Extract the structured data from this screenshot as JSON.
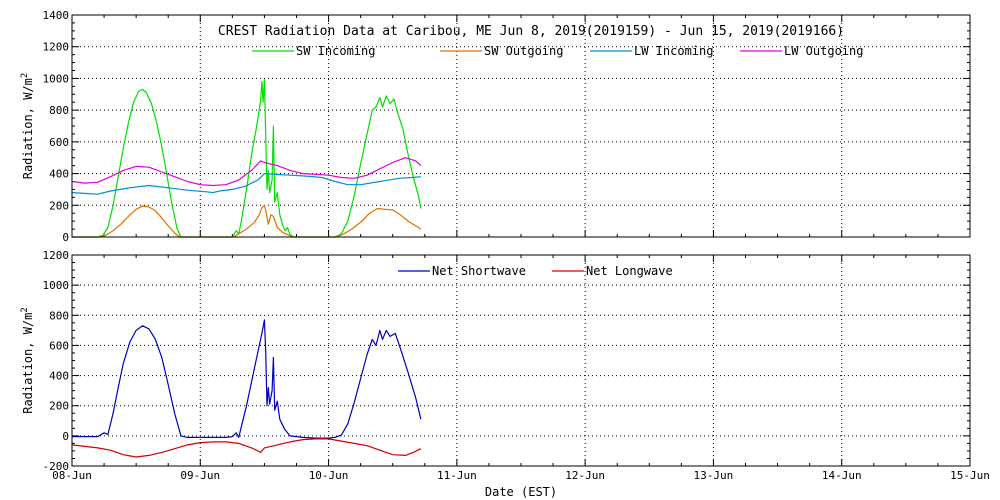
{
  "chart_data": [
    {
      "type": "line",
      "title": "CREST Radiation Data at Caribou, ME   Jun  8, 2019(2019159) - Jun 15, 2019(2019166)",
      "xlabel": "",
      "ylabel": "Radiation, W/m^2",
      "xlim": [
        0,
        7
      ],
      "ylim": [
        0,
        1400
      ],
      "yticks": [
        0,
        200,
        400,
        600,
        800,
        1000,
        1200,
        1400
      ],
      "x_tick_labels": [
        "08-Jun",
        "09-Jun",
        "10-Jun",
        "11-Jun",
        "12-Jun",
        "13-Jun",
        "14-Jun",
        "15-Jun"
      ],
      "grid": true,
      "legend_position": "top",
      "series": [
        {
          "name": "SW Incoming",
          "color": "#00e000",
          "points": [
            [
              0.0,
              0
            ],
            [
              0.2,
              0
            ],
            [
              0.24,
              10
            ],
            [
              0.28,
              60
            ],
            [
              0.32,
              200
            ],
            [
              0.36,
              380
            ],
            [
              0.4,
              560
            ],
            [
              0.44,
              720
            ],
            [
              0.48,
              850
            ],
            [
              0.52,
              920
            ],
            [
              0.55,
              930
            ],
            [
              0.58,
              910
            ],
            [
              0.62,
              840
            ],
            [
              0.66,
              720
            ],
            [
              0.7,
              570
            ],
            [
              0.74,
              390
            ],
            [
              0.78,
              200
            ],
            [
              0.82,
              50
            ],
            [
              0.85,
              0
            ],
            [
              1.25,
              0
            ],
            [
              1.28,
              40
            ],
            [
              1.3,
              20
            ],
            [
              1.32,
              100
            ],
            [
              1.36,
              300
            ],
            [
              1.4,
              520
            ],
            [
              1.44,
              700
            ],
            [
              1.47,
              860
            ],
            [
              1.48,
              980
            ],
            [
              1.49,
              850
            ],
            [
              1.5,
              995
            ],
            [
              1.51,
              640
            ],
            [
              1.52,
              300
            ],
            [
              1.53,
              420
            ],
            [
              1.54,
              280
            ],
            [
              1.56,
              360
            ],
            [
              1.57,
              700
            ],
            [
              1.58,
              220
            ],
            [
              1.6,
              280
            ],
            [
              1.62,
              140
            ],
            [
              1.64,
              80
            ],
            [
              1.66,
              40
            ],
            [
              1.68,
              60
            ],
            [
              1.7,
              15
            ],
            [
              1.73,
              0
            ],
            [
              2.05,
              0
            ],
            [
              2.1,
              20
            ],
            [
              2.15,
              100
            ],
            [
              2.2,
              260
            ],
            [
              2.25,
              460
            ],
            [
              2.3,
              650
            ],
            [
              2.34,
              800
            ],
            [
              2.37,
              820
            ],
            [
              2.4,
              880
            ],
            [
              2.42,
              820
            ],
            [
              2.45,
              890
            ],
            [
              2.48,
              840
            ],
            [
              2.51,
              870
            ],
            [
              2.54,
              780
            ],
            [
              2.58,
              680
            ],
            [
              2.62,
              520
            ],
            [
              2.66,
              380
            ],
            [
              2.7,
              260
            ],
            [
              2.72,
              180
            ]
          ]
        },
        {
          "name": "SW Outgoing",
          "color": "#e07000",
          "points": [
            [
              0.0,
              0
            ],
            [
              0.22,
              0
            ],
            [
              0.26,
              10
            ],
            [
              0.32,
              40
            ],
            [
              0.38,
              80
            ],
            [
              0.44,
              130
            ],
            [
              0.5,
              175
            ],
            [
              0.55,
              195
            ],
            [
              0.6,
              190
            ],
            [
              0.65,
              165
            ],
            [
              0.7,
              120
            ],
            [
              0.75,
              70
            ],
            [
              0.8,
              25
            ],
            [
              0.84,
              0
            ],
            [
              1.26,
              0
            ],
            [
              1.3,
              20
            ],
            [
              1.36,
              50
            ],
            [
              1.42,
              90
            ],
            [
              1.46,
              140
            ],
            [
              1.48,
              185
            ],
            [
              1.5,
              200
            ],
            [
              1.51,
              170
            ],
            [
              1.53,
              80
            ],
            [
              1.55,
              140
            ],
            [
              1.57,
              130
            ],
            [
              1.6,
              60
            ],
            [
              1.64,
              30
            ],
            [
              1.68,
              15
            ],
            [
              1.72,
              0
            ],
            [
              2.06,
              0
            ],
            [
              2.12,
              20
            ],
            [
              2.18,
              50
            ],
            [
              2.26,
              100
            ],
            [
              2.32,
              150
            ],
            [
              2.38,
              180
            ],
            [
              2.44,
              175
            ],
            [
              2.5,
              170
            ],
            [
              2.56,
              140
            ],
            [
              2.62,
              100
            ],
            [
              2.68,
              70
            ],
            [
              2.72,
              50
            ]
          ]
        },
        {
          "name": "LW Incoming",
          "color": "#0090d0",
          "points": [
            [
              0.0,
              280
            ],
            [
              0.1,
              275
            ],
            [
              0.2,
              270
            ],
            [
              0.3,
              290
            ],
            [
              0.45,
              310
            ],
            [
              0.6,
              325
            ],
            [
              0.75,
              310
            ],
            [
              0.9,
              295
            ],
            [
              1.05,
              285
            ],
            [
              1.1,
              280
            ],
            [
              1.15,
              290
            ],
            [
              1.25,
              300
            ],
            [
              1.35,
              320
            ],
            [
              1.45,
              360
            ],
            [
              1.5,
              400
            ],
            [
              1.6,
              395
            ],
            [
              1.7,
              390
            ],
            [
              1.8,
              385
            ],
            [
              1.95,
              375
            ],
            [
              2.05,
              350
            ],
            [
              2.15,
              330
            ],
            [
              2.25,
              330
            ],
            [
              2.4,
              350
            ],
            [
              2.55,
              370
            ],
            [
              2.65,
              375
            ],
            [
              2.72,
              380
            ]
          ]
        },
        {
          "name": "LW Outgoing",
          "color": "#e000e0",
          "points": [
            [
              0.0,
              350
            ],
            [
              0.1,
              340
            ],
            [
              0.2,
              345
            ],
            [
              0.3,
              380
            ],
            [
              0.4,
              420
            ],
            [
              0.5,
              445
            ],
            [
              0.6,
              440
            ],
            [
              0.7,
              410
            ],
            [
              0.8,
              380
            ],
            [
              0.9,
              350
            ],
            [
              1.0,
              330
            ],
            [
              1.1,
              325
            ],
            [
              1.2,
              330
            ],
            [
              1.3,
              360
            ],
            [
              1.4,
              420
            ],
            [
              1.47,
              480
            ],
            [
              1.5,
              470
            ],
            [
              1.6,
              450
            ],
            [
              1.7,
              420
            ],
            [
              1.8,
              400
            ],
            [
              1.9,
              395
            ],
            [
              2.0,
              390
            ],
            [
              2.1,
              375
            ],
            [
              2.2,
              370
            ],
            [
              2.3,
              390
            ],
            [
              2.4,
              430
            ],
            [
              2.5,
              470
            ],
            [
              2.6,
              500
            ],
            [
              2.68,
              480
            ],
            [
              2.72,
              450
            ]
          ]
        }
      ]
    },
    {
      "type": "line",
      "title": "",
      "xlabel": "Date (EST)",
      "ylabel": "Radiation, W/m^2",
      "xlim": [
        0,
        7
      ],
      "ylim": [
        -200,
        1200
      ],
      "yticks": [
        -200,
        0,
        200,
        400,
        600,
        800,
        1000,
        1200
      ],
      "x_tick_labels": [
        "08-Jun",
        "09-Jun",
        "10-Jun",
        "11-Jun",
        "12-Jun",
        "13-Jun",
        "14-Jun",
        "15-Jun"
      ],
      "grid": true,
      "legend_position": "top",
      "series": [
        {
          "name": "Net Shortwave",
          "color": "#0000c0",
          "points": [
            [
              0.0,
              -5
            ],
            [
              0.1,
              -5
            ],
            [
              0.2,
              -5
            ],
            [
              0.25,
              20
            ],
            [
              0.28,
              10
            ],
            [
              0.32,
              150
            ],
            [
              0.36,
              320
            ],
            [
              0.4,
              480
            ],
            [
              0.45,
              620
            ],
            [
              0.5,
              700
            ],
            [
              0.55,
              730
            ],
            [
              0.6,
              710
            ],
            [
              0.65,
              640
            ],
            [
              0.7,
              520
            ],
            [
              0.75,
              340
            ],
            [
              0.8,
              150
            ],
            [
              0.85,
              0
            ],
            [
              0.9,
              -10
            ],
            [
              1.0,
              -10
            ],
            [
              1.1,
              -10
            ],
            [
              1.2,
              -10
            ],
            [
              1.25,
              -5
            ],
            [
              1.28,
              20
            ],
            [
              1.3,
              -10
            ],
            [
              1.32,
              60
            ],
            [
              1.36,
              200
            ],
            [
              1.4,
              360
            ],
            [
              1.44,
              520
            ],
            [
              1.47,
              640
            ],
            [
              1.49,
              720
            ],
            [
              1.5,
              770
            ],
            [
              1.51,
              560
            ],
            [
              1.52,
              200
            ],
            [
              1.53,
              320
            ],
            [
              1.54,
              210
            ],
            [
              1.56,
              300
            ],
            [
              1.57,
              520
            ],
            [
              1.58,
              170
            ],
            [
              1.6,
              230
            ],
            [
              1.62,
              110
            ],
            [
              1.66,
              40
            ],
            [
              1.7,
              0
            ],
            [
              1.8,
              -10
            ],
            [
              1.9,
              -15
            ],
            [
              2.0,
              -15
            ],
            [
              2.05,
              -10
            ],
            [
              2.1,
              5
            ],
            [
              2.15,
              80
            ],
            [
              2.2,
              220
            ],
            [
              2.25,
              380
            ],
            [
              2.3,
              540
            ],
            [
              2.34,
              640
            ],
            [
              2.37,
              600
            ],
            [
              2.4,
              700
            ],
            [
              2.42,
              640
            ],
            [
              2.45,
              700
            ],
            [
              2.48,
              660
            ],
            [
              2.52,
              680
            ],
            [
              2.56,
              580
            ],
            [
              2.62,
              420
            ],
            [
              2.68,
              250
            ],
            [
              2.72,
              110
            ]
          ]
        },
        {
          "name": "Net Longwave",
          "color": "#d00000",
          "points": [
            [
              0.0,
              -60
            ],
            [
              0.1,
              -70
            ],
            [
              0.2,
              -80
            ],
            [
              0.3,
              -95
            ],
            [
              0.4,
              -125
            ],
            [
              0.5,
              -140
            ],
            [
              0.6,
              -130
            ],
            [
              0.7,
              -110
            ],
            [
              0.8,
              -85
            ],
            [
              0.9,
              -60
            ],
            [
              1.0,
              -45
            ],
            [
              1.1,
              -40
            ],
            [
              1.2,
              -40
            ],
            [
              1.3,
              -50
            ],
            [
              1.4,
              -80
            ],
            [
              1.47,
              -110
            ],
            [
              1.5,
              -80
            ],
            [
              1.6,
              -60
            ],
            [
              1.7,
              -40
            ],
            [
              1.8,
              -25
            ],
            [
              1.9,
              -20
            ],
            [
              2.0,
              -20
            ],
            [
              2.1,
              -35
            ],
            [
              2.2,
              -50
            ],
            [
              2.3,
              -65
            ],
            [
              2.4,
              -95
            ],
            [
              2.5,
              -125
            ],
            [
              2.6,
              -130
            ],
            [
              2.66,
              -110
            ],
            [
              2.72,
              -85
            ]
          ]
        }
      ]
    }
  ]
}
